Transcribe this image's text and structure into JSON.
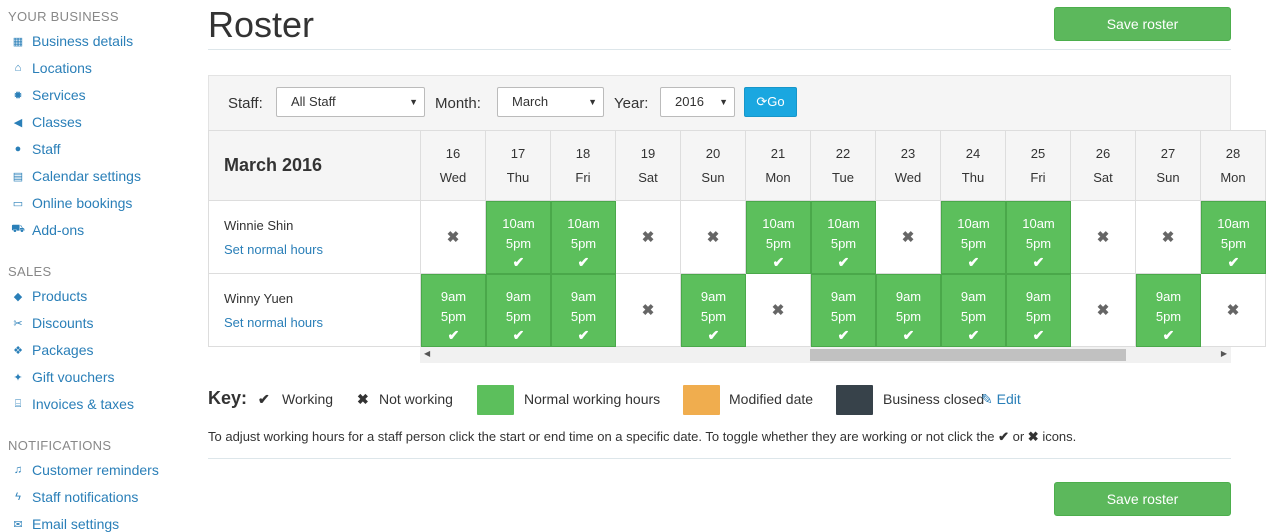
{
  "sidebar": {
    "sections": [
      {
        "title": "YOUR BUSINESS",
        "items": [
          {
            "label": "Business details",
            "icon": "building-icon"
          },
          {
            "label": "Locations",
            "icon": "home-icon"
          },
          {
            "label": "Services",
            "icon": "gear-icon"
          },
          {
            "label": "Classes",
            "icon": "megaphone-icon"
          },
          {
            "label": "Staff",
            "icon": "user-icon"
          },
          {
            "label": "Calendar settings",
            "icon": "calendar-icon"
          },
          {
            "label": "Online bookings",
            "icon": "laptop-icon"
          },
          {
            "label": "Add-ons",
            "icon": "cart-icon"
          }
        ]
      },
      {
        "title": "SALES",
        "items": [
          {
            "label": "Products",
            "icon": "tag-icon"
          },
          {
            "label": "Discounts",
            "icon": "scissors-icon"
          },
          {
            "label": "Packages",
            "icon": "cubes-icon"
          },
          {
            "label": "Gift vouchers",
            "icon": "gift-icon"
          },
          {
            "label": "Invoices & taxes",
            "icon": "bank-icon"
          }
        ]
      },
      {
        "title": "NOTIFICATIONS",
        "items": [
          {
            "label": "Customer reminders",
            "icon": "bell-icon"
          },
          {
            "label": "Staff notifications",
            "icon": "bolt-icon"
          },
          {
            "label": "Email settings",
            "icon": "envelope-icon"
          }
        ]
      }
    ]
  },
  "page": {
    "title": "Roster",
    "save_label": "Save roster"
  },
  "filters": {
    "staff_label": "Staff:",
    "staff_value": "All Staff",
    "month_label": "Month:",
    "month_value": "March",
    "year_label": "Year:",
    "year_value": "2016",
    "go_label": "Go"
  },
  "roster": {
    "month_title": "March 2016",
    "days": [
      {
        "num": "16",
        "dow": "Wed"
      },
      {
        "num": "17",
        "dow": "Thu"
      },
      {
        "num": "18",
        "dow": "Fri"
      },
      {
        "num": "19",
        "dow": "Sat"
      },
      {
        "num": "20",
        "dow": "Sun"
      },
      {
        "num": "21",
        "dow": "Mon"
      },
      {
        "num": "22",
        "dow": "Tue"
      },
      {
        "num": "23",
        "dow": "Wed"
      },
      {
        "num": "24",
        "dow": "Thu"
      },
      {
        "num": "25",
        "dow": "Fri"
      },
      {
        "num": "26",
        "dow": "Sat"
      },
      {
        "num": "27",
        "dow": "Sun"
      },
      {
        "num": "28",
        "dow": "Mon"
      }
    ],
    "staff": [
      {
        "name": "Winnie Shin",
        "link": "Set normal hours",
        "cells": [
          {
            "working": false
          },
          {
            "working": true,
            "start": "10am",
            "end": "5pm"
          },
          {
            "working": true,
            "start": "10am",
            "end": "5pm"
          },
          {
            "working": false
          },
          {
            "working": false
          },
          {
            "working": true,
            "start": "10am",
            "end": "5pm"
          },
          {
            "working": true,
            "start": "10am",
            "end": "5pm"
          },
          {
            "working": false
          },
          {
            "working": true,
            "start": "10am",
            "end": "5pm"
          },
          {
            "working": true,
            "start": "10am",
            "end": "5pm"
          },
          {
            "working": false
          },
          {
            "working": false
          },
          {
            "working": true,
            "start": "10am",
            "end": "5pm"
          }
        ]
      },
      {
        "name": "Winny Yuen",
        "link": "Set normal hours",
        "cells": [
          {
            "working": true,
            "start": "9am",
            "end": "5pm"
          },
          {
            "working": true,
            "start": "9am",
            "end": "5pm"
          },
          {
            "working": true,
            "start": "9am",
            "end": "5pm"
          },
          {
            "working": false
          },
          {
            "working": true,
            "start": "9am",
            "end": "5pm"
          },
          {
            "working": false
          },
          {
            "working": true,
            "start": "9am",
            "end": "5pm"
          },
          {
            "working": true,
            "start": "9am",
            "end": "5pm"
          },
          {
            "working": true,
            "start": "9am",
            "end": "5pm"
          },
          {
            "working": true,
            "start": "9am",
            "end": "5pm"
          },
          {
            "working": false
          },
          {
            "working": true,
            "start": "9am",
            "end": "5pm"
          },
          {
            "working": false
          }
        ]
      }
    ]
  },
  "key": {
    "label": "Key:",
    "working": "Working",
    "not_working": "Not working",
    "normal_hours": "Normal working hours",
    "modified_date": "Modified date",
    "business_closed": "Business closed",
    "edit_label": "Edit",
    "colors": {
      "normal": "#5cbf5c",
      "modified": "#f0ad4e",
      "closed": "#37424a"
    }
  },
  "instructions": {
    "before": "To adjust working hours for a staff person click the start or end time on a specific date. To toggle whether they are working or not click the",
    "or": "or",
    "after": "icons."
  }
}
